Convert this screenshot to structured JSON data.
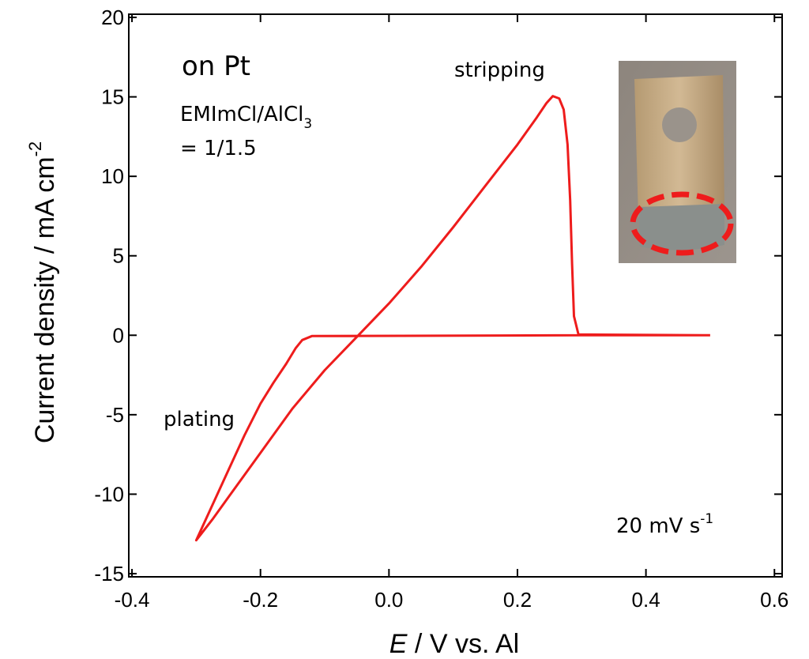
{
  "chart_data": {
    "type": "line",
    "x_label": {
      "italic": "E",
      "text": " / V vs. Al"
    },
    "y_label": {
      "text": "Current density / mA cm",
      "sup": "-2"
    },
    "annotations": [
      {
        "text": "on Pt"
      },
      {
        "text": "stripping"
      },
      {
        "text": "EMImCl/AlCl",
        "sub": "3"
      },
      {
        "text": "= 1/1.5"
      },
      {
        "text": "plating"
      },
      {
        "text": "20 mV s",
        "sup": "-1"
      }
    ],
    "series": [
      {
        "color": "#ee1c1c",
        "x": [
          0.5,
          0.3,
          -0.12,
          -0.135,
          -0.145,
          -0.16,
          -0.18,
          -0.2,
          -0.225,
          -0.25,
          -0.275,
          -0.3,
          -0.275,
          -0.25,
          -0.2,
          -0.15,
          -0.1,
          -0.05,
          0.0,
          0.05,
          0.1,
          0.15,
          0.2,
          0.23,
          0.245,
          0.255,
          0.265,
          0.272,
          0.278,
          0.282,
          0.285,
          0.288,
          0.295,
          0.5
        ],
        "y": [
          0,
          0,
          -0.05,
          -0.3,
          -0.8,
          -1.8,
          -3.0,
          -4.3,
          -6.3,
          -8.5,
          -10.7,
          -12.9,
          -11.6,
          -10.2,
          -7.4,
          -4.6,
          -2.2,
          -0.1,
          2.0,
          4.3,
          6.8,
          9.4,
          12.0,
          13.7,
          14.6,
          15.05,
          14.9,
          14.2,
          12.0,
          8.5,
          4.5,
          1.2,
          0.05,
          0
        ]
      }
    ],
    "xlim": [
      -0.405,
      0.612
    ],
    "xticks": [
      -0.4,
      -0.2,
      {
        "value": 0,
        "label": "0.0"
      },
      0.2,
      0.4,
      0.6
    ],
    "ylim": [
      -15.2,
      20.2
    ],
    "yticks": [
      -15,
      -10,
      -5,
      0,
      5,
      10,
      15,
      20
    ]
  }
}
